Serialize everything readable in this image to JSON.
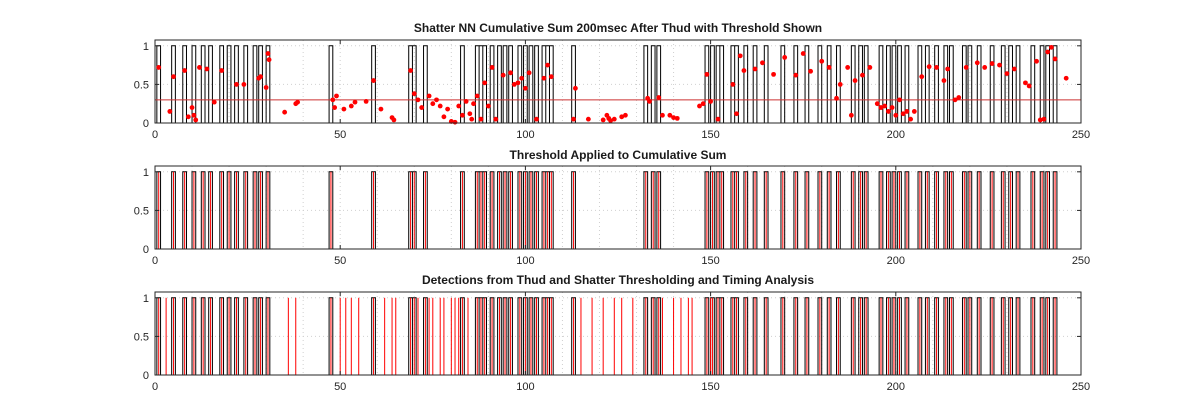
{
  "window": {
    "background": "#ffffff"
  },
  "colors": {
    "ground_truth": "#000000",
    "detection": "#ff0000",
    "threshold_line": "#cc3333",
    "grid": "#d0d0d0",
    "axis": "#262626"
  },
  "chart_data": [
    {
      "type": "line",
      "title": "Shatter NN Cumulative Sum 200msec After Thud with Threshold Shown",
      "xlabel": "",
      "ylabel": "",
      "xlim": [
        0,
        250
      ],
      "ylim": [
        0,
        1
      ],
      "xticks": [
        "0",
        "50",
        "100",
        "150",
        "200",
        "250"
      ],
      "yticks": [
        "0",
        "0.5",
        "1"
      ],
      "grid": true,
      "threshold": 0.3,
      "scatter_points": [
        [
          1,
          0.72
        ],
        [
          4,
          0.15
        ],
        [
          5,
          0.6
        ],
        [
          8,
          0.68
        ],
        [
          9,
          0.08
        ],
        [
          10,
          0.2
        ],
        [
          10.5,
          0.1
        ],
        [
          11,
          0.04
        ],
        [
          12,
          0.72
        ],
        [
          14,
          0.7
        ],
        [
          16,
          0.27
        ],
        [
          18,
          0.68
        ],
        [
          22,
          0.5
        ],
        [
          24,
          0.5
        ],
        [
          28,
          0.58
        ],
        [
          28.5,
          0.6
        ],
        [
          30,
          0.46
        ],
        [
          30.5,
          0.9
        ],
        [
          30.8,
          0.82
        ],
        [
          35,
          0.14
        ],
        [
          38,
          0.25
        ],
        [
          38.5,
          0.27
        ],
        [
          48,
          0.3
        ],
        [
          48.5,
          0.2
        ],
        [
          49,
          0.35
        ],
        [
          51,
          0.18
        ],
        [
          53,
          0.22
        ],
        [
          54,
          0.27
        ],
        [
          57,
          0.28
        ],
        [
          59,
          0.55
        ],
        [
          61,
          0.18
        ],
        [
          64,
          0.07
        ],
        [
          64.5,
          0.04
        ],
        [
          69,
          0.68
        ],
        [
          70,
          0.38
        ],
        [
          71,
          0.3
        ],
        [
          72,
          0.2
        ],
        [
          74,
          0.35
        ],
        [
          75,
          0.25
        ],
        [
          76,
          0.3
        ],
        [
          77,
          0.22
        ],
        [
          78,
          0.08
        ],
        [
          79,
          0.18
        ],
        [
          80,
          0.02
        ],
        [
          81,
          0.01
        ],
        [
          82,
          0.22
        ],
        [
          83,
          0.1
        ],
        [
          84,
          0.28
        ],
        [
          85,
          0.12
        ],
        [
          85.5,
          0.05
        ],
        [
          86,
          0.25
        ],
        [
          87,
          0.35
        ],
        [
          88,
          0.05
        ],
        [
          89,
          0.52
        ],
        [
          90,
          0.22
        ],
        [
          91,
          0.72
        ],
        [
          92,
          0.05
        ],
        [
          94,
          0.62
        ],
        [
          96,
          0.65
        ],
        [
          97,
          0.5
        ],
        [
          98,
          0.52
        ],
        [
          99,
          0.58
        ],
        [
          100,
          0.45
        ],
        [
          101,
          0.65
        ],
        [
          103,
          0.05
        ],
        [
          105,
          0.58
        ],
        [
          106,
          0.75
        ],
        [
          107,
          0.6
        ],
        [
          113,
          0.05
        ],
        [
          113.5,
          0.45
        ],
        [
          117,
          0.05
        ],
        [
          121,
          0.04
        ],
        [
          122,
          0.1
        ],
        [
          122.5,
          0.06
        ],
        [
          123,
          0.03
        ],
        [
          124,
          0.05
        ],
        [
          126,
          0.08
        ],
        [
          127,
          0.1
        ],
        [
          133,
          0.32
        ],
        [
          133.5,
          0.28
        ],
        [
          136,
          0.33
        ],
        [
          137,
          0.1
        ],
        [
          139,
          0.1
        ],
        [
          140,
          0.07
        ],
        [
          141,
          0.06
        ],
        [
          147,
          0.22
        ],
        [
          148,
          0.25
        ],
        [
          149,
          0.63
        ],
        [
          150,
          0.28
        ],
        [
          152,
          0.05
        ],
        [
          156,
          0.5
        ],
        [
          157,
          0.12
        ],
        [
          158,
          0.87
        ],
        [
          159,
          0.68
        ],
        [
          162,
          0.7
        ],
        [
          164,
          0.78
        ],
        [
          167,
          0.63
        ],
        [
          170,
          0.85
        ],
        [
          173,
          0.62
        ],
        [
          175,
          0.9
        ],
        [
          177,
          0.67
        ],
        [
          180,
          0.8
        ],
        [
          182,
          0.72
        ],
        [
          184,
          0.32
        ],
        [
          185,
          0.5
        ],
        [
          187,
          0.72
        ],
        [
          188,
          0.1
        ],
        [
          189,
          0.55
        ],
        [
          191,
          0.62
        ],
        [
          193,
          0.72
        ],
        [
          195,
          0.25
        ],
        [
          196,
          0.2
        ],
        [
          197,
          0.22
        ],
        [
          198,
          0.15
        ],
        [
          199,
          0.2
        ],
        [
          200,
          0.1
        ],
        [
          201,
          0.3
        ],
        [
          202,
          0.12
        ],
        [
          203,
          0.15
        ],
        [
          204,
          0.05
        ],
        [
          205,
          0.15
        ],
        [
          207,
          0.6
        ],
        [
          209,
          0.73
        ],
        [
          211,
          0.72
        ],
        [
          213,
          0.55
        ],
        [
          214,
          0.7
        ],
        [
          216,
          0.3
        ],
        [
          217,
          0.33
        ],
        [
          219,
          0.72
        ],
        [
          222,
          0.78
        ],
        [
          224,
          0.72
        ],
        [
          226,
          0.77
        ],
        [
          228,
          0.75
        ],
        [
          230,
          0.64
        ],
        [
          232,
          0.7
        ],
        [
          235,
          0.52
        ],
        [
          236,
          0.48
        ],
        [
          238,
          0.8
        ],
        [
          239,
          0.04
        ],
        [
          240,
          0.05
        ],
        [
          241,
          0.92
        ],
        [
          242,
          0.98
        ],
        [
          243,
          0.83
        ],
        [
          246,
          0.58
        ]
      ]
    },
    {
      "type": "line",
      "title": "Threshold Applied to Cumulative Sum",
      "xlabel": "",
      "ylabel": "",
      "xlim": [
        0,
        250
      ],
      "ylim": [
        0,
        1
      ],
      "xticks": [
        "0",
        "50",
        "100",
        "150",
        "200",
        "250"
      ],
      "yticks": [
        "0",
        "0.5",
        "1"
      ],
      "grid": true,
      "detections": [
        1,
        5,
        8,
        10.5,
        13,
        15,
        18,
        20,
        22,
        24.5,
        27,
        28.5,
        30.5,
        47.5,
        59,
        69,
        70,
        73,
        83,
        87,
        88,
        89,
        91,
        93,
        94.5,
        96,
        98.5,
        100,
        101.5,
        103,
        105,
        106,
        107,
        113,
        132.5,
        134.5,
        136,
        149,
        150.5,
        152,
        153,
        156,
        157,
        159.5,
        162,
        165,
        169.5,
        173,
        176,
        179.5,
        182,
        184.5,
        188.5,
        190.5,
        192,
        196,
        198,
        199.5,
        201,
        203,
        206.5,
        208.5,
        211,
        213.5,
        215,
        218.5,
        220,
        222.5,
        226,
        229,
        231,
        233,
        237,
        239.5,
        241,
        243
      ]
    },
    {
      "type": "line",
      "title": "Detections from Thud and Shatter Thresholding and Timing Analysis",
      "xlabel": "",
      "ylabel": "",
      "xlim": [
        0,
        250
      ],
      "ylim": [
        0,
        1
      ],
      "xticks": [
        "0",
        "50",
        "100",
        "150",
        "200",
        "250"
      ],
      "yticks": [
        "0",
        "0.5",
        "1"
      ],
      "grid": true,
      "detections": [
        1,
        3,
        5,
        8,
        10.5,
        13,
        15,
        18,
        20,
        22,
        24.5,
        27,
        28.5,
        30.5,
        36,
        38,
        47.5,
        50,
        51.5,
        53,
        55,
        59,
        62,
        64,
        65,
        69,
        70,
        71,
        73,
        74,
        75,
        77,
        78,
        80,
        81,
        82,
        83,
        84.5,
        87,
        88,
        89,
        91,
        93,
        94.5,
        96,
        98.5,
        100,
        101.5,
        103,
        105,
        106,
        107,
        113,
        115,
        118,
        121,
        124,
        126,
        129,
        132.5,
        134.5,
        136,
        137,
        140,
        142,
        144,
        145,
        149,
        150,
        150.5,
        152,
        153,
        156,
        157,
        159.5,
        162,
        165,
        169.5,
        173,
        176,
        179.5,
        182,
        184.5,
        188.5,
        190.5,
        192,
        196,
        198,
        199.5,
        201,
        203,
        206.5,
        208.5,
        211,
        213.5,
        215,
        218.5,
        220,
        222.5,
        226,
        229,
        231,
        233,
        237,
        239.5,
        241,
        243
      ]
    }
  ]
}
